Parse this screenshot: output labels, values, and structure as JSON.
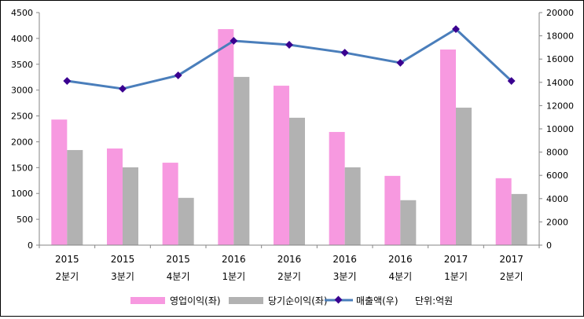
{
  "chart_data": {
    "type": "bar",
    "title": "",
    "categories": [
      {
        "year": "2015",
        "quarter": "2분기"
      },
      {
        "year": "2015",
        "quarter": "3분기"
      },
      {
        "year": "2015",
        "quarter": "4분기"
      },
      {
        "year": "2016",
        "quarter": "1분기"
      },
      {
        "year": "2016",
        "quarter": "2분기"
      },
      {
        "year": "2016",
        "quarter": "3분기"
      },
      {
        "year": "2016",
        "quarter": "4분기"
      },
      {
        "year": "2017",
        "quarter": "1분기"
      },
      {
        "year": "2017",
        "quarter": "2분기"
      }
    ],
    "series": [
      {
        "name": "영업이익(좌)",
        "type": "bar",
        "axis": "left",
        "color": "#f799e0",
        "values": [
          2430,
          1870,
          1595,
          4180,
          3085,
          2190,
          1340,
          3785,
          1295
        ]
      },
      {
        "name": "당기순이익(좌)",
        "type": "bar",
        "axis": "left",
        "color": "#b2b2b2",
        "values": [
          1840,
          1505,
          915,
          3255,
          2465,
          1505,
          870,
          2660,
          990
        ]
      },
      {
        "name": "매출액(우)",
        "type": "line",
        "axis": "right",
        "color": "#4a7ebb",
        "marker_color": "#3a0090",
        "values": [
          14120,
          13450,
          14600,
          17570,
          17230,
          16550,
          15680,
          18580,
          14120
        ]
      }
    ],
    "left_axis": {
      "min": 0,
      "max": 4500,
      "step": 500,
      "ticks": [
        "0",
        "500",
        "1000",
        "1500",
        "2000",
        "2500",
        "3000",
        "3500",
        "4000",
        "4500"
      ]
    },
    "right_axis": {
      "min": 0,
      "max": 20000,
      "step": 2000,
      "ticks": [
        "0",
        "2000",
        "4000",
        "6000",
        "8000",
        "10000",
        "12000",
        "14000",
        "16000",
        "18000",
        "20000"
      ]
    },
    "unit_note": "단위:억원",
    "legend_position": "bottom",
    "grid": false
  }
}
